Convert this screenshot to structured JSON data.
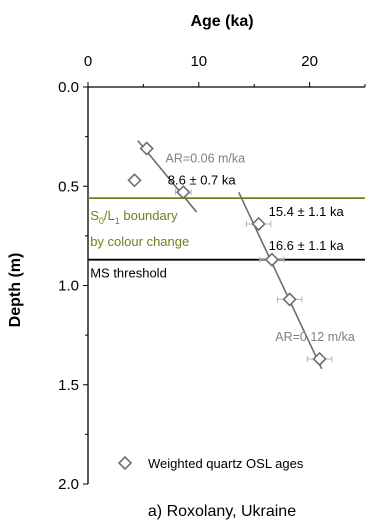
{
  "chart_data": {
    "type": "scatter",
    "title": "",
    "caption": "a) Roxolany, Ukraine",
    "xlabel": "Age (ka)",
    "ylabel": "Depth (m)",
    "xlim": [
      0,
      25
    ],
    "ylim": [
      0.0,
      2.0
    ],
    "x_ticks": [
      0,
      10,
      20
    ],
    "y_ticks": [
      "0.0",
      "0.5",
      "1.0",
      "1.5",
      "2.0"
    ],
    "x_axis_position": "top",
    "y_axis_inverted": true,
    "grid": false,
    "legend": {
      "position": "bottom-left",
      "label": "Weighted quartz OSL ages",
      "marker": "open-diamond"
    },
    "series": [
      {
        "name": "Weighted quartz OSL ages",
        "points": [
          {
            "age": 5.3,
            "age_err": 0.3,
            "depth": 0.31
          },
          {
            "age": 4.2,
            "age_err": 0.0,
            "depth": 0.47
          },
          {
            "age": 8.6,
            "age_err": 0.7,
            "depth": 0.53
          },
          {
            "age": 15.4,
            "age_err": 1.1,
            "depth": 0.69
          },
          {
            "age": 16.6,
            "age_err": 1.1,
            "depth": 0.87
          },
          {
            "age": 18.2,
            "age_err": 1.1,
            "depth": 1.07
          },
          {
            "age": 20.9,
            "age_err": 1.1,
            "depth": 1.37
          }
        ]
      }
    ],
    "regression_lines": [
      {
        "label": "AR=0.06 m/ka",
        "from": {
          "age": 4.5,
          "depth": 0.27
        },
        "to": {
          "age": 9.8,
          "depth": 0.63
        }
      },
      {
        "label": "AR=0.12 m/ka",
        "from": {
          "age": 13.6,
          "depth": 0.53
        },
        "to": {
          "age": 21.1,
          "depth": 1.42
        }
      }
    ],
    "horizontal_lines": [
      {
        "depth": 0.56,
        "color": "#7a7a1e"
      },
      {
        "depth": 0.87,
        "color": "#000000"
      }
    ],
    "annotations": [
      {
        "text": "8.6 ± 0.7 ka",
        "age": 7.2,
        "depth": 0.49,
        "color": "#000000"
      },
      {
        "text": "15.4 ± 1.1 ka",
        "age": 16.3,
        "depth": 0.65,
        "color": "#000000"
      },
      {
        "text": "16.6 ± 1.1 ka",
        "age": 16.3,
        "depth": 0.82,
        "color": "#000000"
      },
      {
        "text": "MS threshold",
        "age": 0.2,
        "depth": 0.96,
        "color": "#000000"
      },
      {
        "text": "by colour change",
        "age": 0.2,
        "depth": 0.8,
        "color": "#7a7a1e"
      }
    ],
    "boundary_label": {
      "main": "S",
      "sub0": "0",
      "mid": "/L",
      "sub1": "1",
      "tail": " boundary",
      "age": 0.2,
      "depth": 0.67,
      "color": "#7a7a1e"
    },
    "colors": {
      "axis": "#000000",
      "series": "#6e6e6e",
      "errorbar": "#b4b4b4",
      "olive": "#7a7a1e",
      "ar_label": "#808080"
    }
  }
}
